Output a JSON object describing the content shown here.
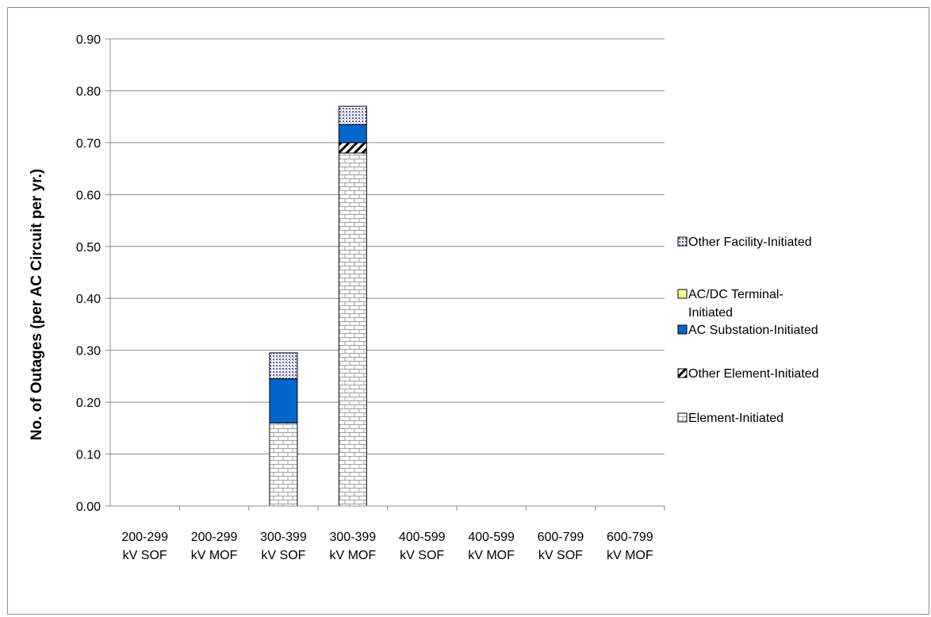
{
  "chart_data": {
    "type": "bar",
    "stacked": true,
    "title": "",
    "ylabel": "No. of Outages (per AC Circuit per yr.)",
    "xlabel": "",
    "ylim": [
      0,
      0.9
    ],
    "yticks": [
      "0.00",
      "0.10",
      "0.20",
      "0.30",
      "0.40",
      "0.50",
      "0.60",
      "0.70",
      "0.80",
      "0.90"
    ],
    "grid": true,
    "legend_position": "right",
    "categories": [
      [
        "200-299",
        "kV SOF"
      ],
      [
        "200-299",
        "kV MOF"
      ],
      [
        "300-399",
        "kV SOF"
      ],
      [
        "300-399",
        "kV MOF"
      ],
      [
        "400-599",
        "kV SOF"
      ],
      [
        "400-599",
        "kV MOF"
      ],
      [
        "600-799",
        "kV SOF"
      ],
      [
        "600-799",
        "kV MOF"
      ]
    ],
    "series": [
      {
        "name": "Element-Initiated",
        "pattern": "brick",
        "color": "#d9d9d9",
        "values": [
          0,
          0,
          0.16,
          0.68,
          0,
          0,
          0,
          0
        ]
      },
      {
        "name": "Other Element-Initiated",
        "pattern": "diagonal",
        "color": "#000000",
        "values": [
          0,
          0,
          0,
          0.02,
          0,
          0,
          0,
          0
        ]
      },
      {
        "name": "AC Substation-Initiated",
        "pattern": "solid",
        "color": "#0066cc",
        "values": [
          0,
          0,
          0.085,
          0.035,
          0,
          0,
          0,
          0
        ]
      },
      {
        "name": "AC/DC Terminal-Initiated",
        "pattern": "solid",
        "color": "#ffff99",
        "values": [
          0,
          0,
          0,
          0,
          0,
          0,
          0,
          0
        ]
      },
      {
        "name": "Other Facility-Initiated",
        "pattern": "dots",
        "color": "#ccccff",
        "values": [
          0,
          0,
          0.05,
          0.035,
          0,
          0,
          0,
          0
        ]
      }
    ],
    "legend_order": [
      [
        "Other Facility-Initiated"
      ],
      [
        "AC/DC Terminal-",
        "Initiated"
      ],
      [
        "AC Substation-Initiated"
      ],
      [
        "Other Element-Initiated"
      ],
      [
        "Element-Initiated"
      ]
    ],
    "legend_series_index": [
      4,
      3,
      2,
      1,
      0
    ]
  }
}
